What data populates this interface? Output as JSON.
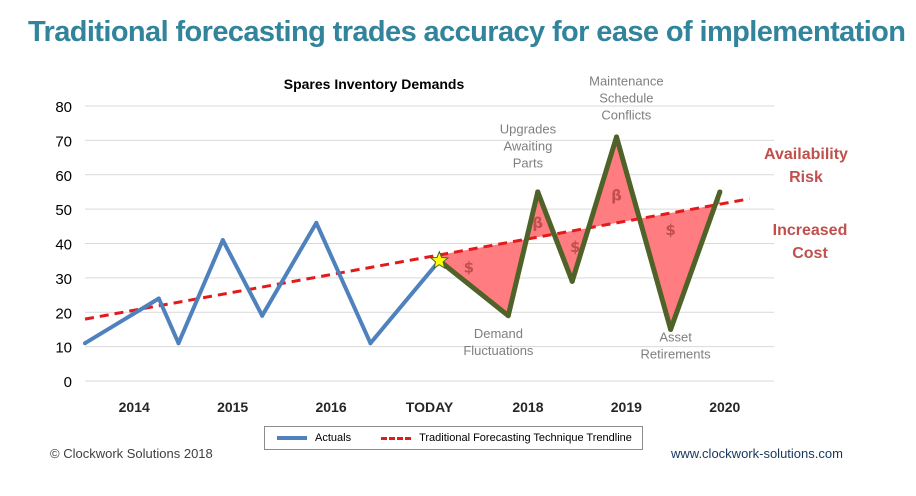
{
  "headline": "Traditional forecasting trades accuracy for ease of implementation",
  "chart_data": {
    "type": "line",
    "title": "Spares Inventory Demands",
    "ylim": [
      0,
      80
    ],
    "yticks": [
      0,
      10,
      20,
      30,
      40,
      50,
      60,
      70,
      80
    ],
    "grid": true,
    "x_domain": [
      0,
      7
    ],
    "categories": [
      {
        "label": "2014",
        "x": 0.5
      },
      {
        "label": "2015",
        "x": 1.5
      },
      {
        "label": "2016",
        "x": 2.5
      },
      {
        "label": "TODAY",
        "x": 3.5
      },
      {
        "label": "2018",
        "x": 4.5
      },
      {
        "label": "2019",
        "x": 5.5
      },
      {
        "label": "2020",
        "x": 6.5
      }
    ],
    "series": [
      {
        "name": "Actuals",
        "color": "#4f81bd",
        "points": [
          [
            0.0,
            11
          ],
          [
            0.75,
            24
          ],
          [
            0.95,
            11
          ],
          [
            1.4,
            41
          ],
          [
            1.8,
            19
          ],
          [
            2.35,
            46
          ],
          [
            2.9,
            11
          ],
          [
            3.6,
            35
          ]
        ]
      },
      {
        "name": "Forecast",
        "color": "#4f6228",
        "points": [
          [
            3.6,
            35
          ],
          [
            4.3,
            19
          ],
          [
            4.6,
            55
          ],
          [
            4.95,
            29
          ],
          [
            5.4,
            71
          ],
          [
            5.95,
            15
          ],
          [
            6.45,
            55
          ]
        ]
      },
      {
        "name": "Traditional Forecasting Technique Trendline",
        "color": "#e31a1c",
        "dashed": true,
        "points": [
          [
            0.0,
            18
          ],
          [
            6.75,
            53
          ]
        ]
      }
    ],
    "gap_markers": [
      {
        "label": "$",
        "x": 3.9,
        "y": 33
      },
      {
        "label": "β",
        "x": 4.6,
        "y": 46
      },
      {
        "label": "$",
        "x": 4.98,
        "y": 39
      },
      {
        "label": "β",
        "x": 5.4,
        "y": 54
      },
      {
        "label": "$",
        "x": 5.95,
        "y": 44
      }
    ],
    "annotations": [
      {
        "lines": [
          "Upgrades",
          "Awaiting",
          "Parts"
        ],
        "x": 4.5,
        "y": 72,
        "color": "#7f7f7f"
      },
      {
        "lines": [
          "Maintenance",
          "Schedule",
          "Conflicts"
        ],
        "x": 5.5,
        "y": 86,
        "color": "#7f7f7f"
      },
      {
        "lines": [
          "Demand",
          "Fluctuations"
        ],
        "x": 4.2,
        "y": 12.5,
        "color": "#7f7f7f"
      },
      {
        "lines": [
          "Asset",
          "Retirements"
        ],
        "x": 6.0,
        "y": 11.5,
        "color": "#7f7f7f"
      }
    ],
    "side_labels": [
      {
        "lines": [
          "Availability",
          "Risk"
        ],
        "color": "#c0504d"
      },
      {
        "lines": [
          "Increased",
          "Cost"
        ],
        "color": "#c0504d"
      }
    ]
  },
  "legend": {
    "actuals": "Actuals",
    "trendline": "Traditional Forecasting Technique Trendline"
  },
  "footer": {
    "copyright": "© Clockwork Solutions 2018",
    "website": "www.clockwork-solutions.com"
  }
}
